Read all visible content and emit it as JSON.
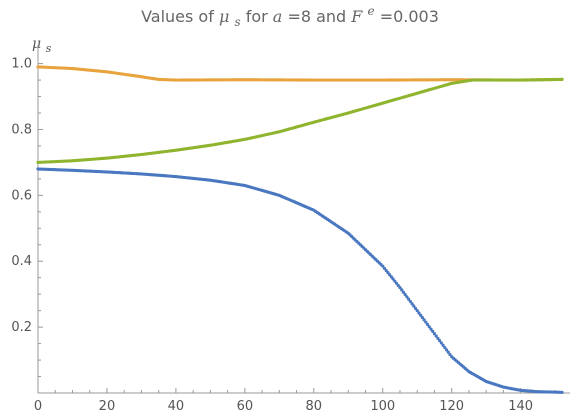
{
  "chart_data": {
    "type": "scatter",
    "title": {
      "prefix": "Values of ",
      "mu": "μ",
      "mu_sub": "s",
      "middle": " for ",
      "a_var": "a",
      "a_eq": "=8 and ",
      "f_var": "F",
      "f_sup": "e",
      "f_eq": "=0.003"
    },
    "ylabel": {
      "base": "μ",
      "sub": "s"
    },
    "xlabel": "",
    "xlim": [
      0,
      152
    ],
    "ylim": [
      0,
      1.02
    ],
    "x_ticks": [
      0,
      20,
      40,
      60,
      80,
      100,
      120,
      140
    ],
    "y_ticks": [
      0.2,
      0.4,
      0.6,
      0.8,
      1.0
    ],
    "y_tick_labels": [
      "0.2",
      "0.4",
      "0.6",
      "0.8",
      "1.0"
    ],
    "grid": false,
    "series": [
      {
        "color": "#e8a33d",
        "points": [
          [
            0,
            0.99
          ],
          [
            10,
            0.985
          ],
          [
            20,
            0.975
          ],
          [
            30,
            0.96
          ],
          [
            35,
            0.952
          ],
          [
            40,
            0.95
          ],
          [
            60,
            0.951
          ],
          [
            80,
            0.95
          ],
          [
            100,
            0.95
          ],
          [
            120,
            0.951
          ],
          [
            140,
            0.95
          ],
          [
            152,
            0.952
          ]
        ]
      },
      {
        "color": "#8fb42e",
        "points": [
          [
            0,
            0.7
          ],
          [
            10,
            0.705
          ],
          [
            20,
            0.713
          ],
          [
            30,
            0.724
          ],
          [
            40,
            0.737
          ],
          [
            50,
            0.752
          ],
          [
            60,
            0.77
          ],
          [
            70,
            0.793
          ],
          [
            80,
            0.822
          ],
          [
            90,
            0.85
          ],
          [
            100,
            0.88
          ],
          [
            110,
            0.91
          ],
          [
            120,
            0.94
          ],
          [
            126,
            0.95
          ],
          [
            140,
            0.95
          ],
          [
            152,
            0.952
          ]
        ]
      },
      {
        "color": "#4a78c0",
        "points": [
          [
            0,
            0.68
          ],
          [
            10,
            0.676
          ],
          [
            20,
            0.671
          ],
          [
            30,
            0.665
          ],
          [
            40,
            0.657
          ],
          [
            50,
            0.646
          ],
          [
            60,
            0.63
          ],
          [
            70,
            0.6
          ],
          [
            80,
            0.555
          ],
          [
            90,
            0.485
          ],
          [
            100,
            0.385
          ],
          [
            105,
            0.32
          ],
          [
            110,
            0.25
          ],
          [
            115,
            0.18
          ],
          [
            120,
            0.11
          ],
          [
            125,
            0.065
          ],
          [
            130,
            0.035
          ],
          [
            135,
            0.018
          ],
          [
            140,
            0.008
          ],
          [
            145,
            0.004
          ],
          [
            152,
            0.002
          ]
        ]
      }
    ]
  }
}
